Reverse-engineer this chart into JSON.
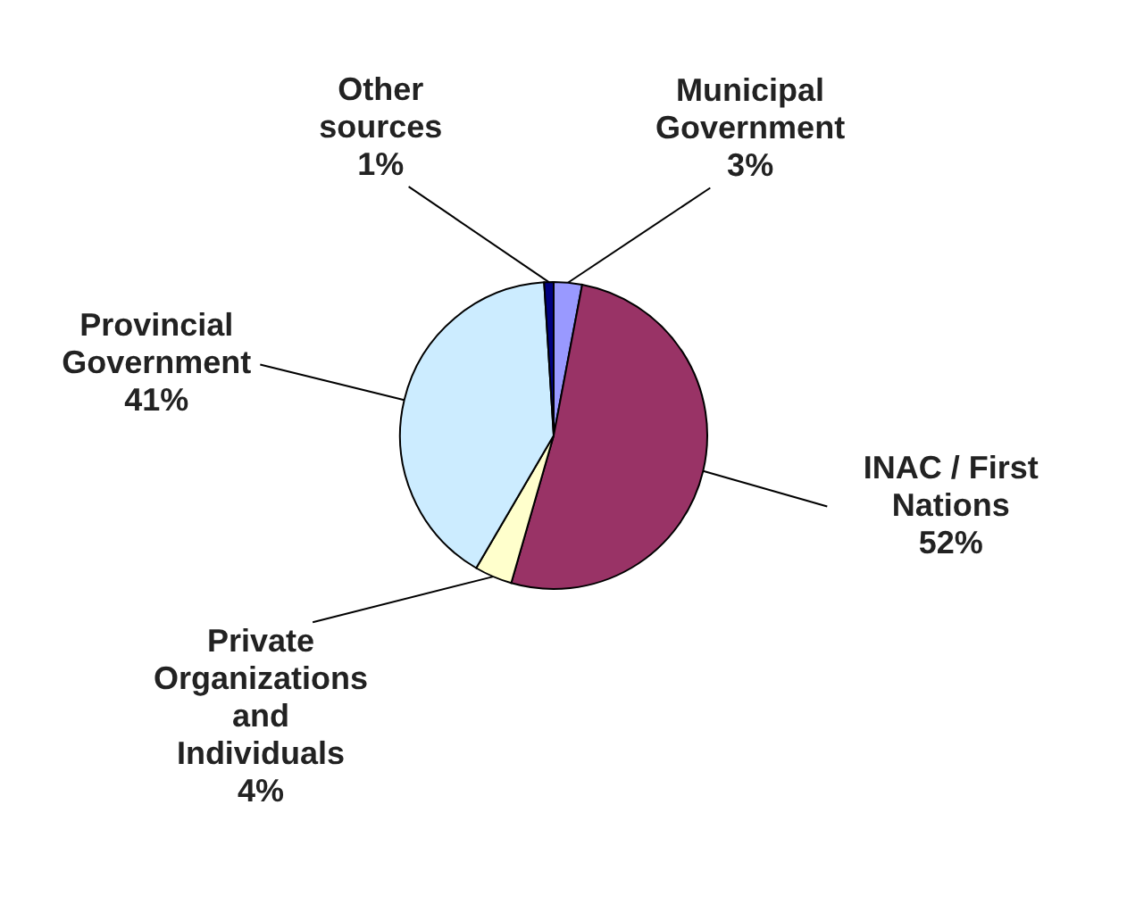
{
  "chart_data": {
    "type": "pie",
    "categories": [
      "Municipal Government",
      "INAC / First Nations",
      "Private Organizations and Individuals",
      "Provincial Government",
      "Other sources"
    ],
    "values": [
      3,
      52,
      4,
      41,
      1
    ],
    "colors": [
      "#9999ff",
      "#993366",
      "#ffffcc",
      "#ccecff",
      "#000080"
    ],
    "value_labels": [
      "3%",
      "52%",
      "4%",
      "41%",
      "1%"
    ]
  }
}
